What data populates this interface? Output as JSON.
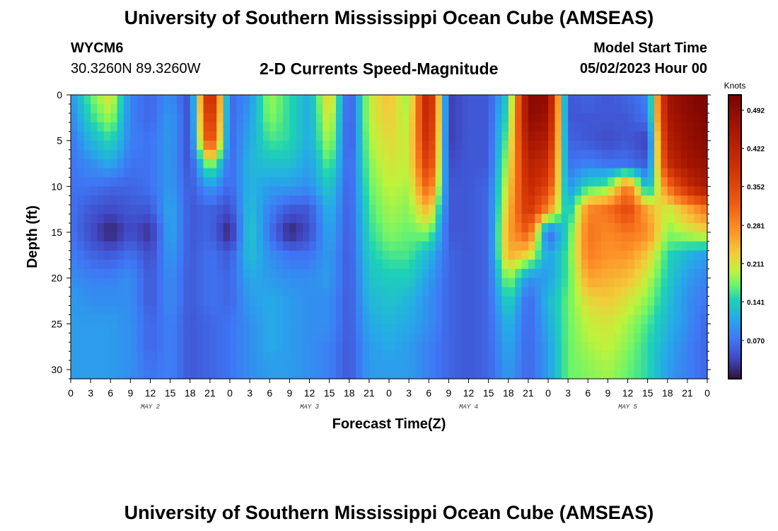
{
  "page": {
    "title_top": "University of Southern Mississippi Ocean Cube (AMSEAS)",
    "title_bottom": "University of Southern Mississippi Ocean Cube (AMSEAS)",
    "station_id": "WYCM6",
    "station_coords": "30.3260N  89.3260W",
    "chart_title": "2-D Currents Speed-Magnitude",
    "model_start_label": "Model Start Time",
    "model_start_value": "05/02/2023 Hour 00"
  },
  "chart_data": {
    "type": "heatmap",
    "title": "2-D Currents Speed-Magnitude",
    "xlabel": "Forecast Time(Z)",
    "ylabel": "Depth (ft)",
    "x_tick_labels": [
      "0",
      "3",
      "6",
      "9",
      "12",
      "15",
      "18",
      "21",
      "0",
      "3",
      "6",
      "9",
      "12",
      "15",
      "18",
      "21",
      "0",
      "3",
      "6",
      "9",
      "12",
      "15",
      "18",
      "21",
      "0",
      "3",
      "6",
      "9",
      "12",
      "15",
      "18",
      "21",
      "0"
    ],
    "day_labels": [
      "MAY 2",
      "MAY 3",
      "MAY 4",
      "MAY 5"
    ],
    "day_label_hours": [
      12,
      36,
      60,
      84
    ],
    "xlim_hours": [
      0,
      96
    ],
    "ylim": [
      0,
      31
    ],
    "y_ticks": [
      0,
      5,
      10,
      15,
      20,
      25,
      30
    ],
    "y_tick_labels": [
      "0",
      "5",
      "10",
      "15",
      "20",
      "25",
      "30"
    ],
    "colorbar": {
      "unit": "Knots",
      "min": 0.0,
      "max": 0.52,
      "tick_values": [
        0.07,
        0.141,
        0.211,
        0.281,
        0.352,
        0.422,
        0.492
      ],
      "tick_labels": [
        "0.070",
        "0.141",
        "0.211",
        "0.281",
        "0.352",
        "0.422",
        "0.492"
      ]
    },
    "grid": false,
    "legend": "colorbar-right",
    "depths_ft": [
      0,
      2.5,
      5,
      7.5,
      10,
      12.5,
      15,
      17.5,
      20,
      22.5,
      25,
      27.5,
      30
    ],
    "hours": [
      0,
      3,
      6,
      9,
      12,
      15,
      18,
      21,
      24,
      27,
      30,
      33,
      36,
      39,
      42,
      45,
      48,
      51,
      54,
      57,
      60,
      63,
      66,
      69,
      72,
      75,
      78,
      81,
      84,
      87,
      90,
      93,
      96
    ],
    "speed_knots": [
      [
        0.09,
        0.17,
        0.22,
        0.08,
        0.06,
        0.09,
        0.04,
        0.45,
        0.06,
        0.09,
        0.19,
        0.15,
        0.11,
        0.24,
        0.04,
        0.2,
        0.24,
        0.18,
        0.45,
        0.03,
        0.05,
        0.05,
        0.14,
        0.5,
        0.49,
        0.05,
        0.06,
        0.05,
        0.06,
        0.08,
        0.46,
        0.5,
        0.52
      ],
      [
        0.08,
        0.15,
        0.19,
        0.08,
        0.06,
        0.1,
        0.04,
        0.42,
        0.06,
        0.1,
        0.18,
        0.15,
        0.11,
        0.22,
        0.04,
        0.2,
        0.23,
        0.19,
        0.44,
        0.03,
        0.05,
        0.05,
        0.16,
        0.49,
        0.47,
        0.05,
        0.05,
        0.05,
        0.05,
        0.07,
        0.45,
        0.49,
        0.51
      ],
      [
        0.07,
        0.12,
        0.15,
        0.08,
        0.07,
        0.1,
        0.04,
        0.38,
        0.06,
        0.11,
        0.16,
        0.15,
        0.11,
        0.2,
        0.04,
        0.19,
        0.22,
        0.2,
        0.42,
        0.03,
        0.05,
        0.05,
        0.18,
        0.46,
        0.44,
        0.06,
        0.05,
        0.04,
        0.05,
        0.03,
        0.43,
        0.48,
        0.5
      ],
      [
        0.07,
        0.09,
        0.11,
        0.07,
        0.07,
        0.1,
        0.04,
        0.2,
        0.06,
        0.12,
        0.13,
        0.13,
        0.1,
        0.17,
        0.05,
        0.18,
        0.21,
        0.2,
        0.39,
        0.04,
        0.05,
        0.05,
        0.2,
        0.43,
        0.4,
        0.07,
        0.08,
        0.07,
        0.07,
        0.05,
        0.4,
        0.46,
        0.48
      ],
      [
        0.07,
        0.07,
        0.06,
        0.06,
        0.07,
        0.1,
        0.05,
        0.1,
        0.06,
        0.12,
        0.1,
        0.1,
        0.09,
        0.14,
        0.05,
        0.17,
        0.2,
        0.19,
        0.33,
        0.05,
        0.05,
        0.06,
        0.22,
        0.41,
        0.36,
        0.09,
        0.15,
        0.17,
        0.3,
        0.1,
        0.3,
        0.4,
        0.46
      ],
      [
        0.07,
        0.05,
        0.04,
        0.05,
        0.05,
        0.11,
        0.05,
        0.06,
        0.04,
        0.13,
        0.08,
        0.05,
        0.05,
        0.12,
        0.05,
        0.16,
        0.19,
        0.18,
        0.25,
        0.05,
        0.05,
        0.06,
        0.24,
        0.39,
        0.28,
        0.12,
        0.28,
        0.3,
        0.35,
        0.25,
        0.2,
        0.25,
        0.3
      ],
      [
        0.07,
        0.04,
        0.01,
        0.04,
        0.02,
        0.11,
        0.05,
        0.06,
        0.01,
        0.14,
        0.07,
        0.01,
        0.04,
        0.11,
        0.05,
        0.15,
        0.18,
        0.17,
        0.18,
        0.05,
        0.05,
        0.06,
        0.26,
        0.33,
        0.05,
        0.15,
        0.3,
        0.28,
        0.3,
        0.28,
        0.18,
        0.2,
        0.22
      ],
      [
        0.08,
        0.06,
        0.05,
        0.07,
        0.04,
        0.1,
        0.05,
        0.07,
        0.05,
        0.13,
        0.09,
        0.07,
        0.07,
        0.1,
        0.05,
        0.14,
        0.16,
        0.16,
        0.12,
        0.06,
        0.05,
        0.06,
        0.25,
        0.22,
        0.1,
        0.16,
        0.29,
        0.27,
        0.27,
        0.23,
        0.15,
        0.12,
        0.1
      ],
      [
        0.09,
        0.08,
        0.08,
        0.09,
        0.05,
        0.09,
        0.05,
        0.07,
        0.06,
        0.11,
        0.1,
        0.09,
        0.09,
        0.1,
        0.05,
        0.13,
        0.14,
        0.14,
        0.1,
        0.06,
        0.05,
        0.06,
        0.19,
        0.09,
        0.1,
        0.16,
        0.26,
        0.25,
        0.24,
        0.2,
        0.14,
        0.1,
        0.08
      ],
      [
        0.1,
        0.09,
        0.09,
        0.09,
        0.05,
        0.09,
        0.05,
        0.07,
        0.06,
        0.1,
        0.11,
        0.1,
        0.09,
        0.09,
        0.05,
        0.12,
        0.13,
        0.12,
        0.09,
        0.06,
        0.05,
        0.06,
        0.15,
        0.06,
        0.12,
        0.17,
        0.22,
        0.23,
        0.21,
        0.18,
        0.13,
        0.09,
        0.07
      ],
      [
        0.1,
        0.1,
        0.1,
        0.09,
        0.06,
        0.08,
        0.05,
        0.06,
        0.07,
        0.09,
        0.11,
        0.1,
        0.09,
        0.09,
        0.05,
        0.11,
        0.12,
        0.11,
        0.09,
        0.06,
        0.05,
        0.06,
        0.12,
        0.06,
        0.11,
        0.17,
        0.2,
        0.21,
        0.19,
        0.16,
        0.12,
        0.09,
        0.06
      ],
      [
        0.1,
        0.1,
        0.1,
        0.09,
        0.06,
        0.08,
        0.05,
        0.06,
        0.07,
        0.09,
        0.11,
        0.1,
        0.09,
        0.08,
        0.05,
        0.1,
        0.11,
        0.1,
        0.08,
        0.06,
        0.05,
        0.06,
        0.11,
        0.06,
        0.1,
        0.17,
        0.19,
        0.2,
        0.18,
        0.15,
        0.11,
        0.08,
        0.06
      ],
      [
        0.1,
        0.1,
        0.1,
        0.09,
        0.07,
        0.08,
        0.05,
        0.06,
        0.07,
        0.09,
        0.1,
        0.1,
        0.09,
        0.08,
        0.05,
        0.1,
        0.1,
        0.1,
        0.08,
        0.06,
        0.05,
        0.06,
        0.1,
        0.06,
        0.1,
        0.17,
        0.18,
        0.19,
        0.17,
        0.15,
        0.1,
        0.08,
        0.06
      ]
    ]
  }
}
